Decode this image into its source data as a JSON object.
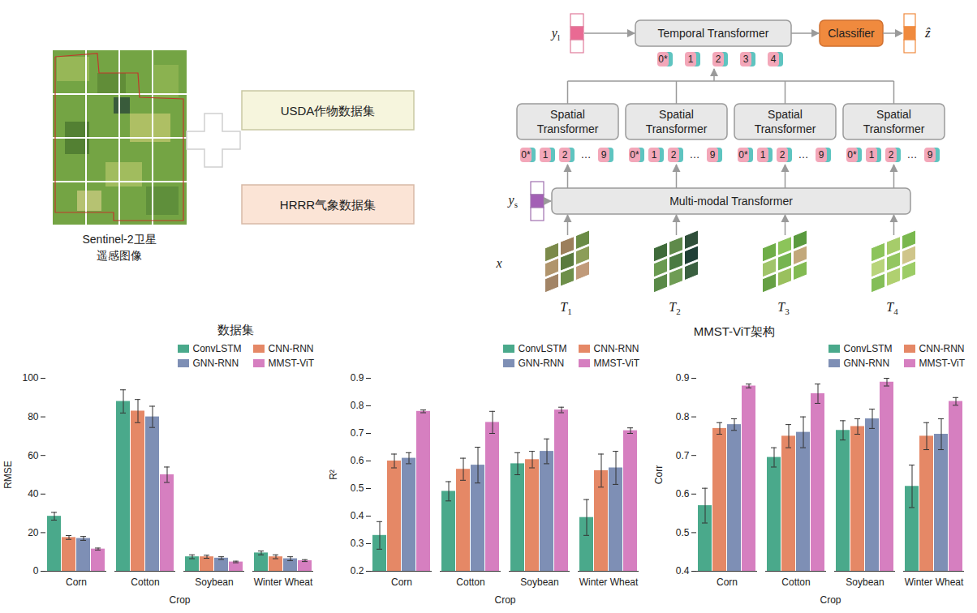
{
  "diagram": {
    "dataset": {
      "image_label": [
        "Sentinel-2卫星",
        "遥感图像"
      ],
      "sources": [
        "USDA作物数据集",
        "HRRR气象数据集"
      ],
      "caption": "数据集"
    },
    "architecture": {
      "caption": "MMST-ViT架构",
      "temporal_transformer": "Temporal Transformer",
      "classifier": "Classifier",
      "output": "ẑ",
      "long_term_input": {
        "text": "y",
        "sub": "l"
      },
      "short_term_input": {
        "text": "y",
        "sub": "s"
      },
      "image_input": "x",
      "temporal_tokens": [
        "0*",
        "1",
        "2",
        "3",
        "4"
      ],
      "spatial_transformers": [
        "Spatial Transformer",
        "Spatial Transformer",
        "Spatial Transformer",
        "Spatial Transformer"
      ],
      "spatial_tokens": [
        "0*",
        "1",
        "2",
        "…",
        "9"
      ],
      "multimodal_transformer": "Multi-modal Transformer",
      "time_steps": [
        {
          "text": "T",
          "sub": "1"
        },
        {
          "text": "T",
          "sub": "2"
        },
        {
          "text": "T",
          "sub": "3"
        },
        {
          "text": "T",
          "sub": "4"
        }
      ]
    }
  },
  "chart_data": [
    {
      "type": "bar",
      "xlabel": "Crop",
      "ylabel": "RMSE",
      "categories": [
        "Corn",
        "Cotton",
        "Soybean",
        "Winter Wheat"
      ],
      "ylim": [
        0,
        100
      ],
      "yticks": [
        0,
        20,
        40,
        60,
        80,
        100
      ],
      "grid": false,
      "legend": "top-right",
      "series": [
        {
          "name": "ConvLSTM",
          "color": "#4aa98b",
          "values": [
            28.5,
            88,
            7.5,
            9.5
          ],
          "errors": [
            2,
            6,
            1,
            1
          ]
        },
        {
          "name": "CNN-RNN",
          "color": "#e58866",
          "values": [
            17.5,
            83,
            7.5,
            7.5
          ],
          "errors": [
            1,
            6,
            0.8,
            1
          ]
        },
        {
          "name": "GNN-RNN",
          "color": "#7e8fb5",
          "values": [
            17,
            80,
            6.8,
            6.5
          ],
          "errors": [
            1,
            5.5,
            0.7,
            1
          ]
        },
        {
          "name": "MMST-ViT",
          "color": "#d67fc0",
          "values": [
            11.5,
            50,
            4.8,
            5.5
          ],
          "errors": [
            0.5,
            4,
            0.4,
            0.5
          ]
        }
      ]
    },
    {
      "type": "bar",
      "xlabel": "Crop",
      "ylabel": "R²",
      "categories": [
        "Corn",
        "Cotton",
        "Soybean",
        "Winter Wheat"
      ],
      "ylim": [
        0.2,
        0.9
      ],
      "yticks": [
        0.2,
        0.3,
        0.4,
        0.5,
        0.6,
        0.7,
        0.8,
        0.9
      ],
      "grid": false,
      "legend": "top-right",
      "series": [
        {
          "name": "ConvLSTM",
          "color": "#4aa98b",
          "values": [
            0.33,
            0.49,
            0.59,
            0.395
          ],
          "errors": [
            0.05,
            0.035,
            0.04,
            0.065
          ]
        },
        {
          "name": "CNN-RNN",
          "color": "#e58866",
          "values": [
            0.6,
            0.57,
            0.605,
            0.565
          ],
          "errors": [
            0.025,
            0.04,
            0.03,
            0.06
          ]
        },
        {
          "name": "GNN-RNN",
          "color": "#7e8fb5",
          "values": [
            0.61,
            0.585,
            0.635,
            0.575
          ],
          "errors": [
            0.02,
            0.065,
            0.045,
            0.06
          ]
        },
        {
          "name": "MMST-ViT",
          "color": "#d67fc0",
          "values": [
            0.78,
            0.74,
            0.785,
            0.71
          ],
          "errors": [
            0.005,
            0.04,
            0.01,
            0.01
          ]
        }
      ]
    },
    {
      "type": "bar",
      "xlabel": "Crop",
      "ylabel": "Corr",
      "categories": [
        "Corn",
        "Cotton",
        "Soybean",
        "Winter Wheat"
      ],
      "ylim": [
        0.4,
        0.9
      ],
      "yticks": [
        0.4,
        0.5,
        0.6,
        0.7,
        0.8,
        0.9
      ],
      "grid": false,
      "legend": "top-right",
      "series": [
        {
          "name": "ConvLSTM",
          "color": "#4aa98b",
          "values": [
            0.57,
            0.695,
            0.765,
            0.62
          ],
          "errors": [
            0.045,
            0.025,
            0.025,
            0.055
          ]
        },
        {
          "name": "CNN-RNN",
          "color": "#e58866",
          "values": [
            0.77,
            0.75,
            0.775,
            0.75
          ],
          "errors": [
            0.015,
            0.03,
            0.02,
            0.035
          ]
        },
        {
          "name": "GNN-RNN",
          "color": "#7e8fb5",
          "values": [
            0.78,
            0.76,
            0.795,
            0.755
          ],
          "errors": [
            0.015,
            0.04,
            0.025,
            0.04
          ]
        },
        {
          "name": "MMST-ViT",
          "color": "#d67fc0",
          "values": [
            0.88,
            0.86,
            0.89,
            0.84
          ],
          "errors": [
            0.005,
            0.025,
            0.01,
            0.01
          ]
        }
      ]
    }
  ]
}
